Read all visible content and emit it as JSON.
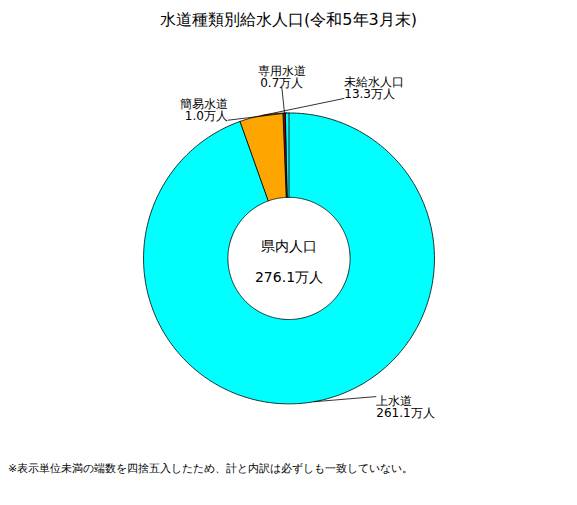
{
  "chart_data": {
    "type": "donut",
    "title": "水道種類別給水人口(令和5年3月末)",
    "categories": [
      "上水道",
      "未給水人口",
      "専用水道",
      "簡易水道"
    ],
    "values": [
      261.1,
      13.3,
      0.7,
      1.0
    ],
    "value_labels": [
      "261.1万人",
      "13.3万人",
      "0.7万人",
      "1.0万人"
    ],
    "data_labels": true,
    "colors": [
      "#00FFFF",
      "#FFA500",
      "#8B0000",
      "#00FFFF"
    ],
    "center_label": [
      "県内人口",
      "276.1万人"
    ],
    "footnote": "※表示単位未満の端数を四捨五入したため、計と内訳は必ずしも一致していない。"
  }
}
